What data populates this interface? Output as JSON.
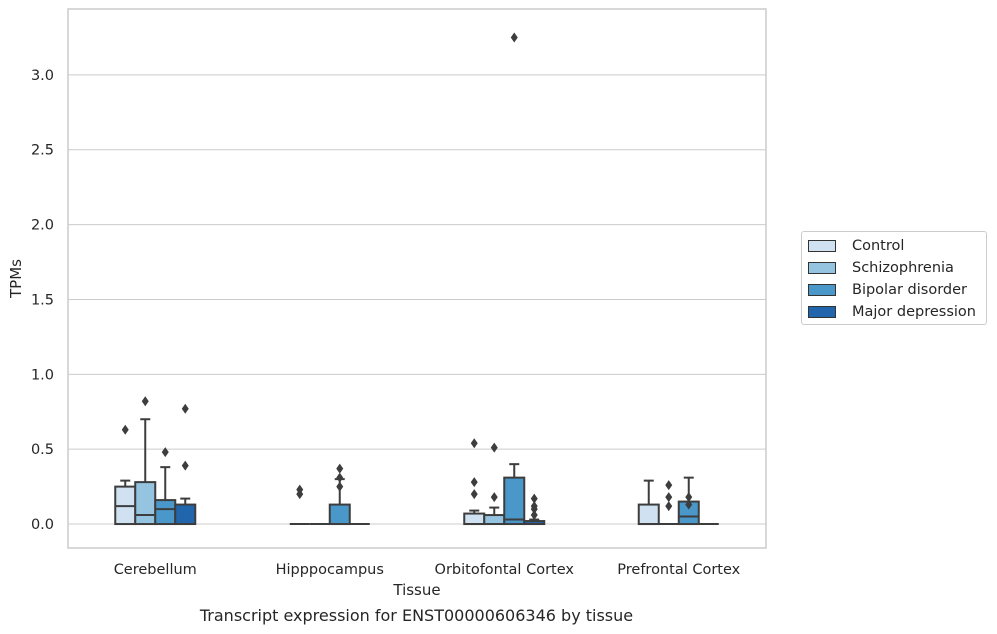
{
  "chart_data": {
    "type": "box",
    "title": "Transcript expression for ENST00000606346 by tissue",
    "xlabel": "Tissue",
    "ylabel": "TPMs",
    "ylim": [
      -0.16,
      3.44
    ],
    "yticks": [
      0.0,
      0.5,
      1.0,
      1.5,
      2.0,
      2.5,
      3.0
    ],
    "ytick_labels": [
      "0.0",
      "0.5",
      "1.0",
      "1.5",
      "2.0",
      "2.5",
      "3.0"
    ],
    "grid": "horizontal",
    "legend_position": "right",
    "categories": [
      "Cerebellum",
      "Hipppocampus",
      "Orbitofontal Cortex",
      "Prefrontal Cortex"
    ],
    "series": [
      {
        "name": "Control",
        "color": "#d0e1f2",
        "boxes": [
          {
            "q1": 0.0,
            "median": 0.12,
            "q3": 0.25,
            "whisker_low": 0.0,
            "whisker_high": 0.29,
            "outliers": [
              0.63
            ]
          },
          {
            "q1": 0.0,
            "median": 0.0,
            "q3": 0.0,
            "whisker_low": 0.0,
            "whisker_high": 0.0,
            "outliers": [
              0.2,
              0.23
            ]
          },
          {
            "q1": 0.0,
            "median": 0.0,
            "q3": 0.07,
            "whisker_low": 0.0,
            "whisker_high": 0.09,
            "outliers": [
              0.2,
              0.28,
              0.54
            ]
          },
          {
            "q1": 0.0,
            "median": 0.0,
            "q3": 0.13,
            "whisker_low": 0.0,
            "whisker_high": 0.29,
            "outliers": []
          }
        ]
      },
      {
        "name": "Schizophrenia",
        "color": "#94c4df",
        "boxes": [
          {
            "q1": 0.0,
            "median": 0.06,
            "q3": 0.28,
            "whisker_low": 0.0,
            "whisker_high": 0.7,
            "outliers": [
              0.82
            ]
          },
          {
            "q1": 0.0,
            "median": 0.0,
            "q3": 0.0,
            "whisker_low": 0.0,
            "whisker_high": 0.0,
            "outliers": []
          },
          {
            "q1": 0.0,
            "median": 0.0,
            "q3": 0.06,
            "whisker_low": 0.0,
            "whisker_high": 0.11,
            "outliers": [
              0.18,
              0.51
            ]
          },
          {
            "q1": 0.0,
            "median": 0.0,
            "q3": 0.0,
            "whisker_low": 0.0,
            "whisker_high": 0.0,
            "outliers": [
              0.12,
              0.18,
              0.26
            ]
          }
        ]
      },
      {
        "name": "Bipolar disorder",
        "color": "#4a98c9",
        "boxes": [
          {
            "q1": 0.0,
            "median": 0.1,
            "q3": 0.16,
            "whisker_low": 0.0,
            "whisker_high": 0.38,
            "outliers": [
              0.48
            ]
          },
          {
            "q1": 0.0,
            "median": 0.0,
            "q3": 0.13,
            "whisker_low": 0.0,
            "whisker_high": 0.3,
            "outliers": [
              0.25,
              0.31,
              0.37
            ]
          },
          {
            "q1": 0.0,
            "median": 0.03,
            "q3": 0.31,
            "whisker_low": 0.0,
            "whisker_high": 0.4,
            "outliers": [
              3.25
            ]
          },
          {
            "q1": 0.0,
            "median": 0.05,
            "q3": 0.15,
            "whisker_low": 0.0,
            "whisker_high": 0.31,
            "outliers": [
              0.13,
              0.18
            ]
          }
        ]
      },
      {
        "name": "Major depression",
        "color": "#2166ac",
        "boxes": [
          {
            "q1": 0.0,
            "median": 0.0,
            "q3": 0.13,
            "whisker_low": 0.0,
            "whisker_high": 0.17,
            "outliers": [
              0.39,
              0.77
            ]
          },
          {
            "q1": 0.0,
            "median": 0.0,
            "q3": 0.0,
            "whisker_low": 0.0,
            "whisker_high": 0.0,
            "outliers": []
          },
          {
            "q1": 0.0,
            "median": 0.0,
            "q3": 0.02,
            "whisker_low": 0.0,
            "whisker_high": 0.03,
            "outliers": [
              0.06,
              0.1,
              0.12,
              0.17
            ]
          },
          {
            "q1": 0.0,
            "median": 0.0,
            "q3": 0.0,
            "whisker_low": 0.0,
            "whisker_high": 0.0,
            "outliers": []
          }
        ]
      }
    ]
  }
}
